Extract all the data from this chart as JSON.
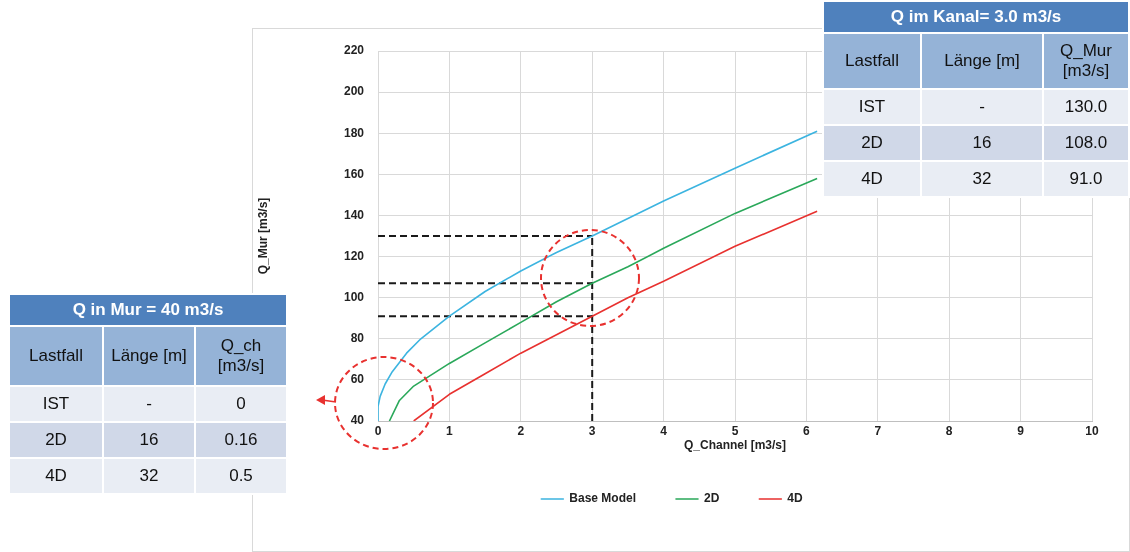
{
  "chart_data": [
    {
      "type": "line",
      "xlabel": "Q_Channel [m3/s]",
      "ylabel": "Q_Mur [m3/s]",
      "xlim": [
        0,
        10
      ],
      "xticks": [
        0,
        1,
        2,
        3,
        4,
        5,
        6,
        7,
        8,
        9,
        10
      ],
      "ylim": [
        40,
        220
      ],
      "yticks": [
        40,
        60,
        80,
        100,
        120,
        140,
        160,
        180,
        200,
        220
      ],
      "grid": true,
      "legend": "bottom",
      "line_style": "solid",
      "series": [
        {
          "name": "Base Model",
          "color": "#3cb4e0",
          "x": [
            0,
            0,
            0.03,
            0.1,
            0.2,
            0.4,
            0.6,
            1,
            1.5,
            2,
            2.5,
            3,
            4,
            5,
            6.15
          ],
          "values": [
            40,
            47,
            52,
            58,
            64,
            73,
            80,
            91,
            103,
            113,
            122,
            130,
            147,
            163,
            181
          ]
        },
        {
          "name": "2D",
          "color": "#2aa85a",
          "x": [
            0.16,
            0.3,
            0.5,
            1,
            1.5,
            2,
            2.5,
            3,
            3.5,
            4,
            5,
            6.15
          ],
          "values": [
            40,
            50,
            57,
            68,
            78,
            88,
            98,
            107,
            115,
            124,
            141,
            158
          ]
        },
        {
          "name": "4D",
          "color": "#e8312f",
          "x": [
            0.5,
            1,
            1.5,
            2,
            2.5,
            3,
            3.5,
            4,
            5,
            6.15
          ],
          "values": [
            40,
            53,
            63,
            73,
            82,
            91,
            100,
            108,
            125,
            142
          ]
        },
        {
          "color": "#1a1a1a",
          "line_style": "dashed",
          "x": [
            0,
            3
          ],
          "values": [
            130,
            130
          ]
        },
        {
          "color": "#1a1a1a",
          "line_style": "dashed",
          "x": [
            0,
            3
          ],
          "values": [
            107,
            107
          ]
        },
        {
          "color": "#1a1a1a",
          "line_style": "dashed",
          "x": [
            0,
            3
          ],
          "values": [
            91,
            91
          ]
        },
        {
          "color": "#1a1a1a",
          "line_style": "dashed",
          "x": [
            3,
            3
          ],
          "values": [
            40,
            130
          ]
        }
      ]
    },
    {
      "type": "other",
      "title": "Q in Mur = 40 m3/s",
      "categories": [
        "Lastfall",
        "Länge [m]",
        "Q_ch [m3/s]"
      ],
      "annotations": [
        "IST",
        "-",
        "0",
        "2D",
        "16",
        "0.16",
        "4D",
        "32",
        "0.5"
      ]
    },
    {
      "type": "other",
      "title": "Q im Kanal= 3.0 m3/s",
      "categories": [
        "Lastfall",
        "Länge [m]",
        "Q_Mur [m3/s]"
      ],
      "annotations": [
        "IST",
        "-",
        "130.0",
        "2D",
        "16",
        "108.0",
        "4D",
        "32",
        "91.0"
      ]
    }
  ]
}
